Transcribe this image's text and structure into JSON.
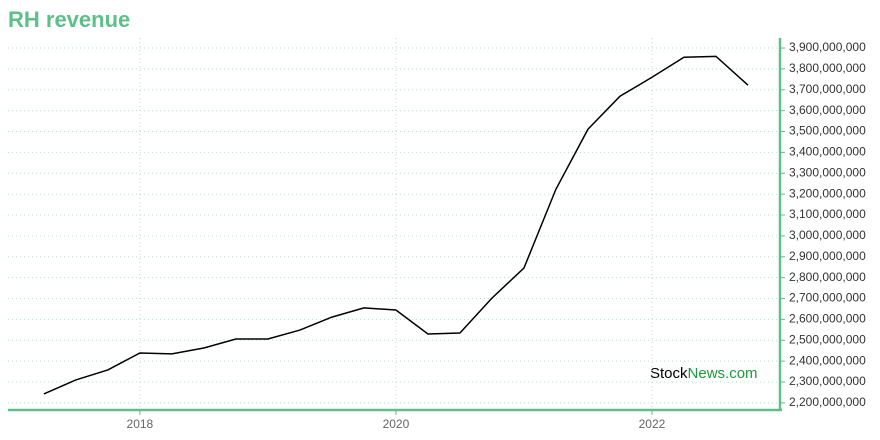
{
  "chart_data": {
    "type": "line",
    "title": "RH revenue",
    "watermark": {
      "left": "Stock",
      "right": "News.com"
    },
    "x": [
      2017.25,
      2017.5,
      2017.75,
      2018.0,
      2018.25,
      2018.5,
      2018.75,
      2019.0,
      2019.25,
      2019.5,
      2019.75,
      2020.0,
      2020.25,
      2020.5,
      2020.75,
      2021.0,
      2021.25,
      2021.5,
      2021.75,
      2022.0,
      2022.25,
      2022.5,
      2022.75
    ],
    "series": [
      {
        "name": "RH revenue",
        "color": "#000000",
        "values": [
          2243000000,
          2310000000,
          2358000000,
          2439000000,
          2435000000,
          2463000000,
          2506000000,
          2506000000,
          2549000000,
          2611000000,
          2655000000,
          2645000000,
          2530000000,
          2535000000,
          2702000000,
          2846000000,
          3224000000,
          3511000000,
          3669000000,
          3760000000,
          3856000000,
          3860000000,
          3722000000
        ]
      }
    ],
    "xlim": [
      2016.97,
      2023.0
    ],
    "xticks": [
      2018,
      2020,
      2022
    ],
    "ylim": [
      2166000000,
      3948000000
    ],
    "yticks": [
      {
        "value": 2200000000,
        "label": "2,200,000,000"
      },
      {
        "value": 2300000000,
        "label": "2,300,000,000"
      },
      {
        "value": 2400000000,
        "label": "2,400,000,000"
      },
      {
        "value": 2500000000,
        "label": "2,500,000,000"
      },
      {
        "value": 2600000000,
        "label": "2,600,000,000"
      },
      {
        "value": 2700000000,
        "label": "2,700,000,000"
      },
      {
        "value": 2800000000,
        "label": "2,800,000,000"
      },
      {
        "value": 2900000000,
        "label": "2,900,000,000"
      },
      {
        "value": 3000000000,
        "label": "3,000,000,000"
      },
      {
        "value": 3100000000,
        "label": "3,100,000,000"
      },
      {
        "value": 3200000000,
        "label": "3,200,000,000"
      },
      {
        "value": 3300000000,
        "label": "3,300,000,000"
      },
      {
        "value": 3400000000,
        "label": "3,400,000,000"
      },
      {
        "value": 3500000000,
        "label": "3,500,000,000"
      },
      {
        "value": 3600000000,
        "label": "3,600,000,000"
      },
      {
        "value": 3700000000,
        "label": "3,700,000,000"
      },
      {
        "value": 3800000000,
        "label": "3,800,000,000"
      },
      {
        "value": 3900000000,
        "label": "3,900,000,000"
      }
    ],
    "grid": true,
    "axis_color": "#5dc08a",
    "y_axis_side": "right"
  }
}
